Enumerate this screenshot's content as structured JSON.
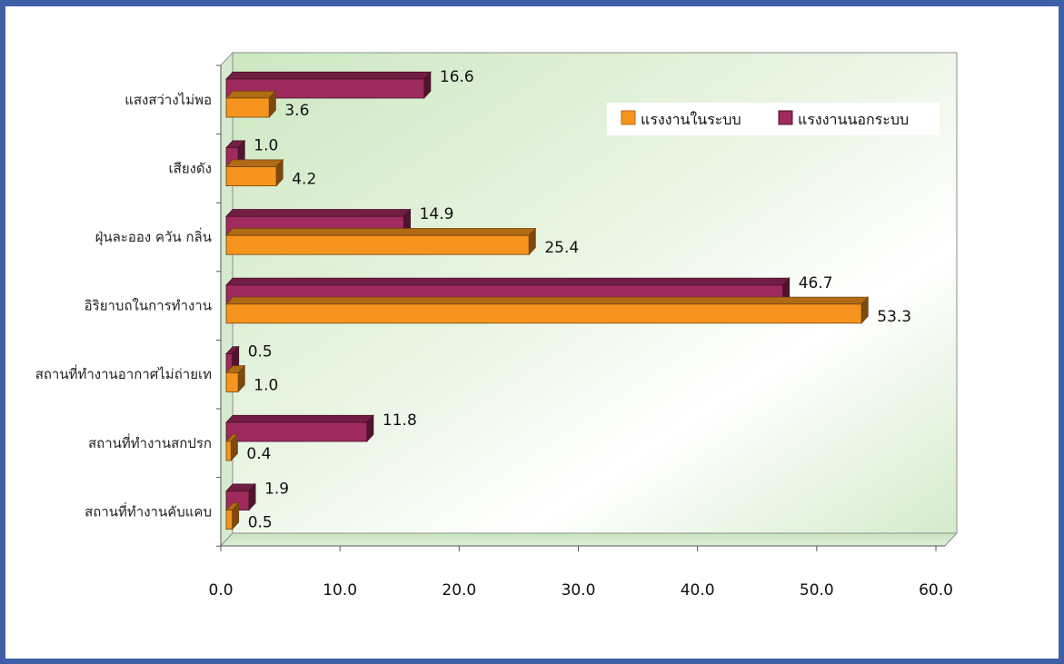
{
  "chart_data": {
    "type": "bar",
    "orientation": "horizontal",
    "categories": [
      "แสงสว่างไม่พอ",
      "เสียงดัง",
      "ฝุ่นละออง ควัน กลิ่น",
      "อิริยาบถในการทำงาน",
      "สถานที่ทำงานอากาศไม่ถ่ายเท",
      "สถานที่ทำงานสกปรก",
      "สถานที่ทำงานคับแคบ"
    ],
    "series": [
      {
        "name": "แรงงานนอกระบบ",
        "color": "#9E2A5E",
        "values": [
          16.6,
          1.0,
          14.9,
          46.7,
          0.5,
          11.8,
          1.9
        ],
        "labels": [
          "16.6",
          "1.0",
          "14.9",
          "46.7",
          "0.5",
          "11.8",
          "1.9"
        ]
      },
      {
        "name": "แรงงานในระบบ",
        "color": "#F7941D",
        "values": [
          3.6,
          4.2,
          25.4,
          53.3,
          1.0,
          0.4,
          0.5
        ],
        "labels": [
          "3.6",
          "4.2",
          "25.4",
          "53.3",
          "1.0",
          "0.4",
          "0.5"
        ]
      }
    ],
    "xlim": [
      0,
      60
    ],
    "xticks": [
      "0.0",
      "10.0",
      "20.0",
      "30.0",
      "40.0",
      "50.0",
      "60.0"
    ],
    "legend": {
      "position": "top-right",
      "entries": [
        "แรงงานในระบบ",
        "แรงงานนอกระบบ"
      ]
    },
    "background": "green-gradient",
    "style": "3d"
  }
}
